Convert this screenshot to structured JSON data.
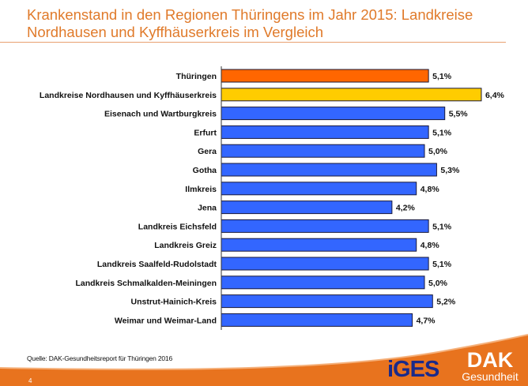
{
  "title": "Krankenstand in den Regionen Thüringens im Jahr 2015: Landkreise Nordhausen und Kyffhäuserkreis im Vergleich",
  "source": "Quelle: DAK-Gesundheitsreport für Thüringen 2016",
  "page_number": "4",
  "logos": {
    "iges": "iGES",
    "dak_top": "DAK",
    "dak_bottom": "Gesundheit"
  },
  "colors": {
    "title": "#E07A2A",
    "thueringen": "#FF6600",
    "highlight": "#FFCC00",
    "regions": "#3366FF",
    "footer": "#E8731E"
  },
  "chart_data": {
    "type": "bar",
    "orientation": "horizontal",
    "categories": [
      "Thüringen",
      "Landkreise Nordhausen und Kyffhäuserkreis",
      "Eisenach und Wartburgkreis",
      "Erfurt",
      "Gera",
      "Gotha",
      "Ilmkreis",
      "Jena",
      "Landkreis Eichsfeld",
      "Landkreis Greiz",
      "Landkreis Saalfeld-Rudolstadt",
      "Landkreis Schmalkalden-Meiningen",
      "Unstrut-Hainich-Kreis",
      "Weimar und Weimar-Land"
    ],
    "values": [
      5.1,
      6.4,
      5.5,
      5.1,
      5.0,
      5.3,
      4.8,
      4.2,
      5.1,
      4.8,
      5.1,
      5.0,
      5.2,
      4.7
    ],
    "labels": [
      "5,1%",
      "6,4%",
      "5,5%",
      "5,1%",
      "5,0%",
      "5,3%",
      "4,8%",
      "4,2%",
      "5,1%",
      "4,8%",
      "5,1%",
      "5,0%",
      "5,2%",
      "4,7%"
    ],
    "bar_colors": [
      "#FF6600",
      "#FFCC00",
      "#3366FF",
      "#3366FF",
      "#3366FF",
      "#3366FF",
      "#3366FF",
      "#3366FF",
      "#3366FF",
      "#3366FF",
      "#3366FF",
      "#3366FF",
      "#3366FF",
      "#3366FF"
    ],
    "unit": "%",
    "xlim": [
      0,
      7
    ],
    "grid": false,
    "legend": "none"
  }
}
